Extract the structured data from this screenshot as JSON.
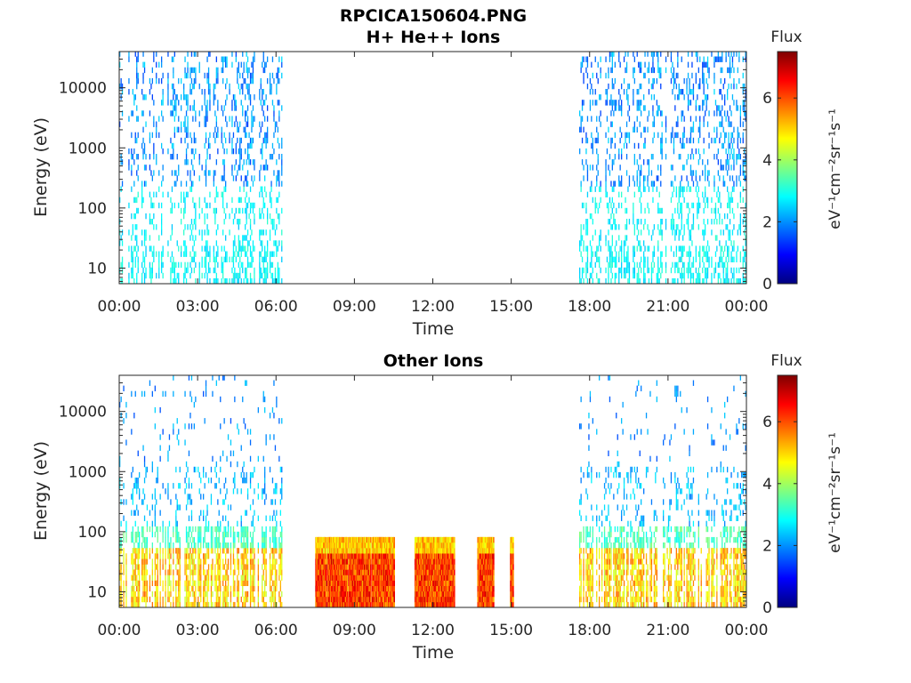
{
  "figure_title": "RPCICA150604.PNG",
  "chart_data": [
    {
      "type": "heatmap",
      "title": "H+ He++ Ions",
      "xlabel": "Time",
      "ylabel": "Energy (eV)",
      "y_scale": "log",
      "ylim": [
        5.5,
        40000
      ],
      "xlim": [
        "00:00",
        "24:00"
      ],
      "x_ticks": [
        "00:00",
        "03:00",
        "06:00",
        "09:00",
        "12:00",
        "15:00",
        "18:00",
        "21:00",
        "00:00"
      ],
      "y_ticks": [
        "10",
        "100",
        "1000",
        "10000"
      ],
      "colorbar": {
        "title": "Flux",
        "label": "eV⁻¹cm⁻²sr⁻¹s⁻¹",
        "ticks": [
          "0",
          "2",
          "4",
          "6"
        ],
        "range": [
          0,
          7.5
        ],
        "colormap": "jet"
      },
      "data_intervals_hours": [
        [
          0.0,
          6.2
        ],
        [
          17.6,
          24.0
        ]
      ],
      "flux_level": "low (approx. 1.5-3), sparse across energies"
    },
    {
      "type": "heatmap",
      "title": "Other Ions",
      "xlabel": "Time",
      "ylabel": "Energy (eV)",
      "y_scale": "log",
      "ylim": [
        5.5,
        40000
      ],
      "xlim": [
        "00:00",
        "24:00"
      ],
      "x_ticks": [
        "00:00",
        "03:00",
        "06:00",
        "09:00",
        "12:00",
        "15:00",
        "18:00",
        "21:00",
        "00:00"
      ],
      "y_ticks": [
        "10",
        "100",
        "1000",
        "10000"
      ],
      "colorbar": {
        "title": "Flux",
        "label": "eV⁻¹cm⁻²sr⁻¹s⁻¹",
        "ticks": [
          "0",
          "2",
          "4",
          "6"
        ],
        "range": [
          0,
          7.5
        ],
        "colormap": "jet"
      },
      "data_intervals_hours": [
        [
          0.0,
          6.2
        ],
        [
          17.6,
          24.0
        ]
      ],
      "high_flux_bursts_hours": [
        [
          7.5,
          10.5
        ],
        [
          11.3,
          12.8
        ],
        [
          13.7,
          14.3
        ],
        [
          14.95,
          15.05
        ]
      ],
      "high_flux_energy_max_ev": 80,
      "flux_level": "moderate (3-6) below ~40 eV in data intervals; high (5-7) in bursts"
    }
  ]
}
